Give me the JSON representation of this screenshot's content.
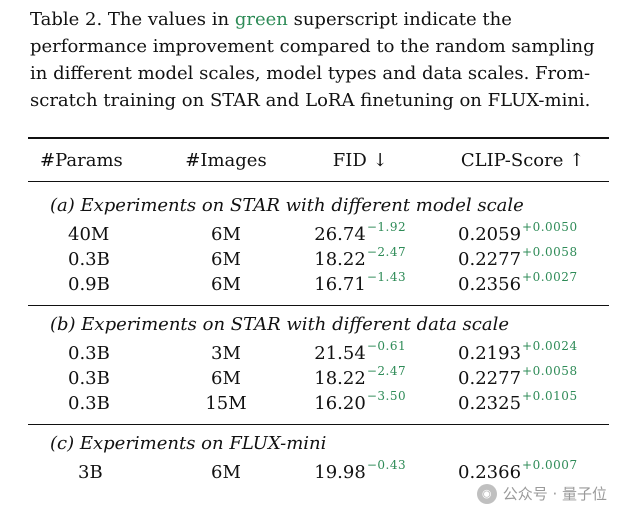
{
  "caption": {
    "label": "Table 2.",
    "text_before": "The values in",
    "green_word": "green",
    "text_after": "superscript indicate the performance improvement compared to the random sampling in different model scales, model types and data scales.  From-scratch training on STAR and LoRA finetuning on FLUX-mini."
  },
  "table": {
    "headers": [
      "#Params",
      "#Images",
      "FID ↓",
      "CLIP-Score ↑"
    ],
    "sections": [
      {
        "title": "(a) Experiments on STAR with different model scale",
        "rows": [
          {
            "params": "40M",
            "images": "6M",
            "fid": "26.74",
            "fid_delta": "−1.92",
            "clip": "0.2059",
            "clip_delta": "+0.0050"
          },
          {
            "params": "0.3B",
            "images": "6M",
            "fid": "18.22",
            "fid_delta": "−2.47",
            "clip": "0.2277",
            "clip_delta": "+0.0058"
          },
          {
            "params": "0.9B",
            "images": "6M",
            "fid": "16.71",
            "fid_delta": "−1.43",
            "clip": "0.2356",
            "clip_delta": "+0.0027"
          }
        ]
      },
      {
        "title": "(b) Experiments on STAR with different data scale",
        "rows": [
          {
            "params": "0.3B",
            "images": "3M",
            "fid": "21.54",
            "fid_delta": "−0.61",
            "clip": "0.2193",
            "clip_delta": "+0.0024"
          },
          {
            "params": "0.3B",
            "images": "6M",
            "fid": "18.22",
            "fid_delta": "−2.47",
            "clip": "0.2277",
            "clip_delta": "+0.0058"
          },
          {
            "params": "0.3B",
            "images": "15M",
            "fid": "16.20",
            "fid_delta": "−3.50",
            "clip": "0.2325",
            "clip_delta": "+0.0105"
          }
        ]
      },
      {
        "title": "(c) Experiments on FLUX-mini",
        "rows": [
          {
            "params": "3B",
            "images": "6M",
            "fid": "19.98",
            "fid_delta": "−0.43",
            "clip": "0.2366",
            "clip_delta": "+0.0007"
          }
        ]
      }
    ]
  },
  "watermark": {
    "text": "公众号 · 量子位",
    "icon": "wechat-icon"
  },
  "colors": {
    "green": "#2e8b57",
    "text": "#111111"
  }
}
